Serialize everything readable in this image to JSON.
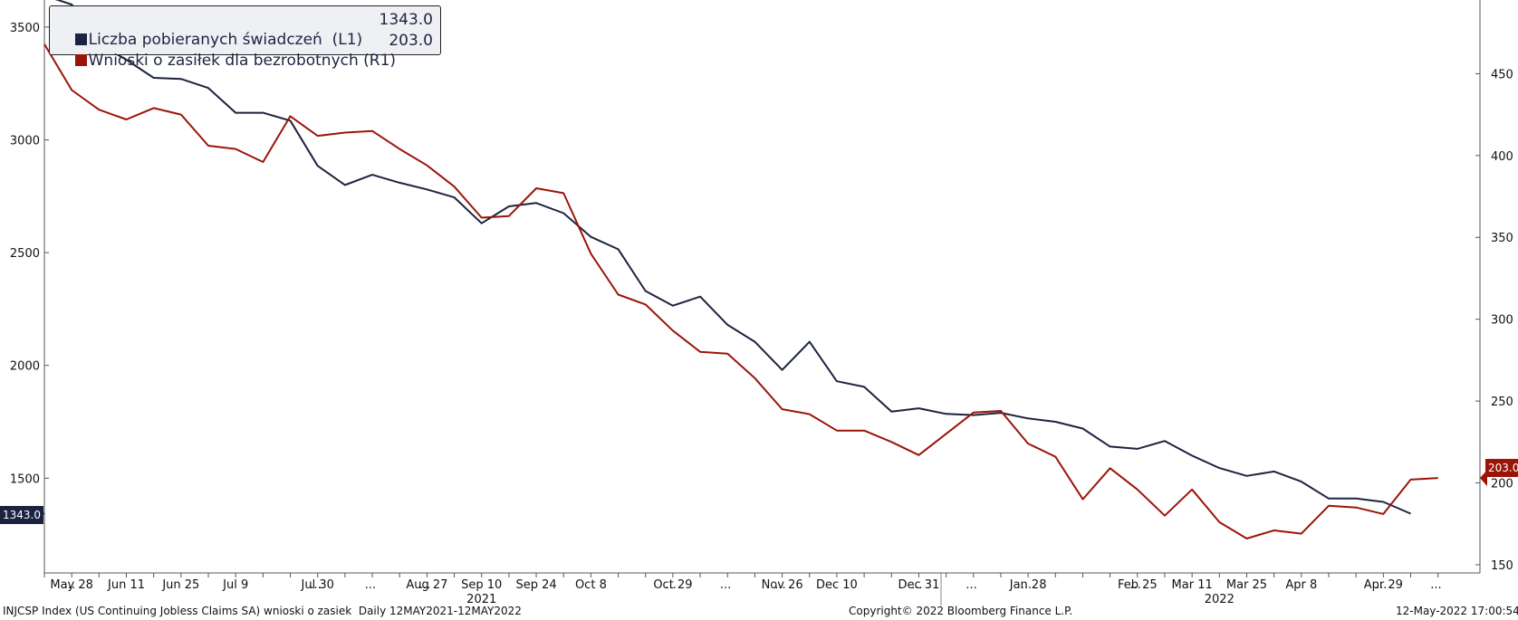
{
  "legend": [
    {
      "label": "Liczba pobieranych świadczeń  (L1)",
      "value": "1343.0",
      "color": "#1c2340"
    },
    {
      "label": "Wnioski o zasiłek dla bezrobotnych (R1)",
      "value": "203.0",
      "color": "#9b1408"
    }
  ],
  "footer": {
    "left": "INJCSP Index (US Continuing Jobless Claims SA) wnioski o zasiek  Daily 12MAY2021-12MAY2022",
    "center": "Copyright© 2022 Bloomberg Finance L.P.",
    "right": "12-May-2022 17:00:54"
  },
  "badges": {
    "left": "1343.0",
    "right": "203.0"
  },
  "chart_data": {
    "type": "line",
    "grid": false,
    "y_left": {
      "ticks": [
        1500,
        2000,
        2500,
        3000,
        3500
      ],
      "range": [
        1080,
        3620
      ]
    },
    "y_right": {
      "ticks": [
        150,
        200,
        250,
        300,
        350,
        400,
        450
      ],
      "range": [
        145,
        495
      ]
    },
    "x_tick_labels": [
      {
        "i": 1,
        "label": "May 28"
      },
      {
        "i": 3,
        "label": "Jun 11"
      },
      {
        "i": 5,
        "label": "Jun 25"
      },
      {
        "i": 7,
        "label": "Jul 9"
      },
      {
        "i": 10,
        "label": "Jul 30"
      },
      {
        "i": 14,
        "label": "Aug 27"
      },
      {
        "i": 16,
        "label": "Sep 10"
      },
      {
        "i": 18,
        "label": "Sep 24"
      },
      {
        "i": 20,
        "label": "Oct 8"
      },
      {
        "i": 23,
        "label": "Oct 29"
      },
      {
        "i": 27,
        "label": "Nov 26"
      },
      {
        "i": 29,
        "label": "Dec 10"
      },
      {
        "i": 32,
        "label": "Dec 31"
      },
      {
        "i": 36,
        "label": "Jan 28"
      },
      {
        "i": 40,
        "label": "Feb 25"
      },
      {
        "i": 42,
        "label": "Mar 11"
      },
      {
        "i": 44,
        "label": "Mar 25"
      },
      {
        "i": 46,
        "label": "Apr 8"
      },
      {
        "i": 49,
        "label": "Apr 29"
      }
    ],
    "x_ellipsis_positions": [
      0,
      9,
      11,
      13,
      22,
      24,
      26,
      31,
      33,
      35,
      39,
      48,
      50
    ],
    "year_labels": [
      {
        "i": 16,
        "label": "2021"
      },
      {
        "i": 43,
        "label": "2022"
      }
    ],
    "series": [
      {
        "name": "Liczba pobieranych świadczeń  (L1)",
        "axis": "left",
        "color": "#1c2340",
        "values": [
          3640,
          3600,
          3425,
          3355,
          3275,
          3270,
          3230,
          3120,
          3120,
          3085,
          2885,
          2800,
          2845,
          2810,
          2780,
          2745,
          2630,
          2705,
          2720,
          2675,
          2570,
          2515,
          2330,
          2265,
          2305,
          2180,
          2105,
          1980,
          2105,
          1930,
          1905,
          1795,
          1810,
          1785,
          1780,
          1790,
          1765,
          1750,
          1720,
          1640,
          1630,
          1665,
          1600,
          1545,
          1510,
          1530,
          1485,
          1410,
          1410,
          1395,
          1343
        ]
      },
      {
        "name": "Wnioski o zasiłek dla bezrobotnych (R1)",
        "axis": "right",
        "color": "#9b1408",
        "values": [
          468,
          440,
          428,
          422,
          429,
          425,
          406,
          404,
          396,
          424,
          412,
          414,
          415,
          404,
          394,
          381,
          362,
          363,
          380,
          377,
          340,
          315,
          309,
          293,
          280,
          279,
          264,
          245,
          242,
          232,
          232,
          225,
          217,
          230,
          243,
          244,
          224,
          216,
          190,
          209,
          196,
          180,
          196,
          176,
          166,
          171,
          169,
          186,
          185,
          181,
          202,
          203
        ]
      }
    ]
  }
}
